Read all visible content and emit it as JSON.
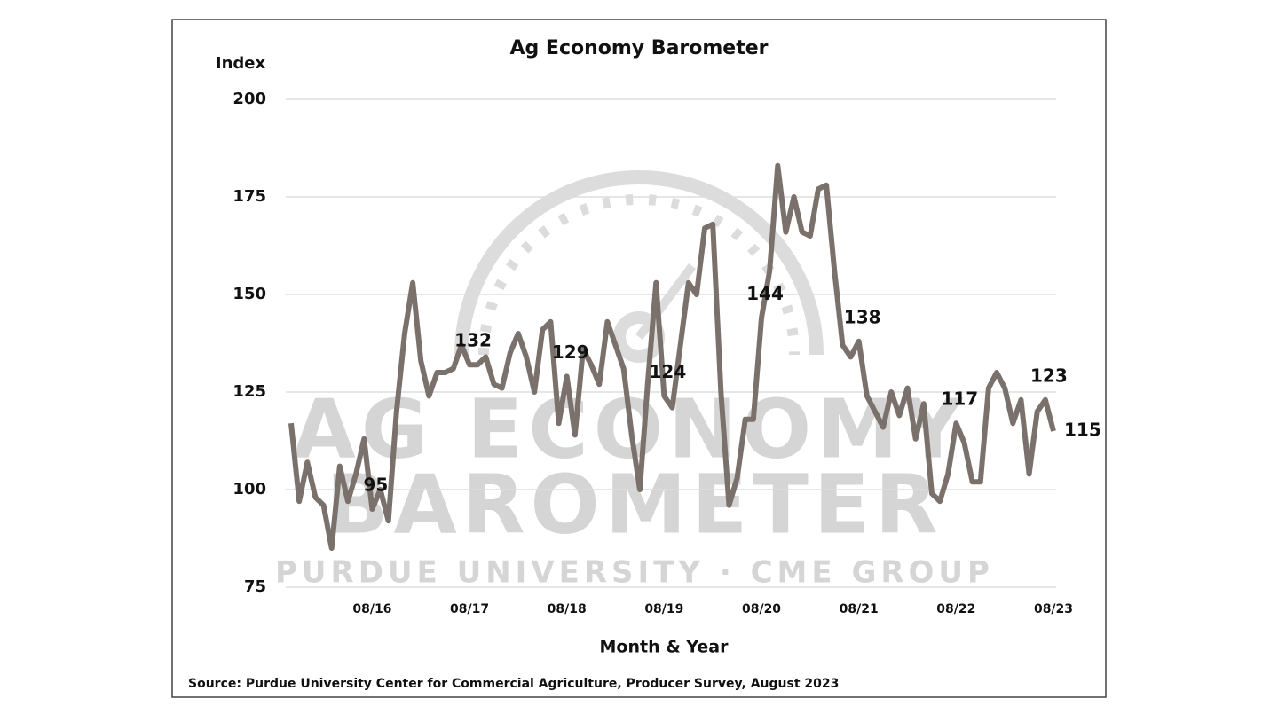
{
  "chart_data": {
    "type": "line",
    "title": "Ag Economy Barometer",
    "y_label": "Index",
    "x_label": "Month & Year",
    "source": "Source: Purdue University Center for Commercial Agriculture, Producer Survey, August 2023",
    "watermark": [
      "AG ECONOMY",
      "BAROMETER",
      "PURDUE UNIVERSITY · CME GROUP"
    ],
    "categories": [
      null,
      null,
      null,
      null,
      null,
      null,
      null,
      null,
      null,
      null,
      "08/16",
      null,
      null,
      null,
      null,
      null,
      null,
      null,
      null,
      null,
      null,
      null,
      "08/17",
      null,
      null,
      null,
      null,
      null,
      null,
      null,
      null,
      null,
      null,
      null,
      "08/18",
      null,
      null,
      null,
      null,
      null,
      null,
      null,
      null,
      null,
      null,
      null,
      "08/19",
      null,
      null,
      null,
      null,
      null,
      null,
      null,
      null,
      null,
      null,
      null,
      "08/20",
      null,
      null,
      null,
      null,
      null,
      null,
      null,
      null,
      null,
      null,
      null,
      "08/21",
      null,
      null,
      null,
      null,
      null,
      null,
      null,
      null,
      null,
      null,
      null,
      "08/22",
      null,
      null,
      null,
      null,
      null,
      null,
      null,
      null,
      null,
      null,
      null,
      "08/23"
    ],
    "series": [
      {
        "name": "Ag Economy Barometer",
        "color": "#7b716c",
        "values": [
          117,
          97,
          107,
          98,
          96,
          85,
          106,
          97,
          104,
          113,
          95,
          100,
          92,
          120,
          140,
          153,
          133,
          124,
          130,
          130,
          131,
          137,
          132,
          132,
          134,
          127,
          126,
          135,
          140,
          134,
          125,
          141,
          143,
          117,
          129,
          114,
          136,
          132,
          127,
          143,
          137,
          131,
          114,
          100,
          128,
          153,
          124,
          121,
          137,
          153,
          150,
          167,
          168,
          125,
          96,
          103,
          118,
          118,
          144,
          156,
          183,
          166,
          175,
          166,
          165,
          177,
          178,
          156,
          137,
          134,
          138,
          124,
          120,
          116,
          125,
          119,
          126,
          113,
          122,
          99,
          97,
          104,
          117,
          112,
          102,
          102,
          126,
          130,
          126,
          117,
          123,
          104,
          120,
          123,
          115
        ],
        "value_labels": [
          null,
          null,
          null,
          null,
          null,
          null,
          null,
          null,
          null,
          null,
          "95",
          null,
          null,
          null,
          null,
          null,
          null,
          null,
          null,
          null,
          null,
          null,
          "132",
          null,
          null,
          null,
          null,
          null,
          null,
          null,
          null,
          null,
          null,
          null,
          "129",
          null,
          null,
          null,
          null,
          null,
          null,
          null,
          null,
          null,
          null,
          null,
          "124",
          null,
          null,
          null,
          null,
          null,
          null,
          null,
          null,
          null,
          null,
          null,
          "144",
          null,
          null,
          null,
          null,
          null,
          null,
          null,
          null,
          null,
          null,
          null,
          "138",
          null,
          null,
          null,
          null,
          null,
          null,
          null,
          null,
          null,
          null,
          null,
          "117",
          null,
          null,
          null,
          null,
          null,
          null,
          null,
          null,
          null,
          null,
          "123",
          "115"
        ]
      }
    ],
    "ylim": [
      75,
      200
    ],
    "yticks": [
      75,
      100,
      125,
      150,
      175,
      200
    ],
    "grid": true
  }
}
